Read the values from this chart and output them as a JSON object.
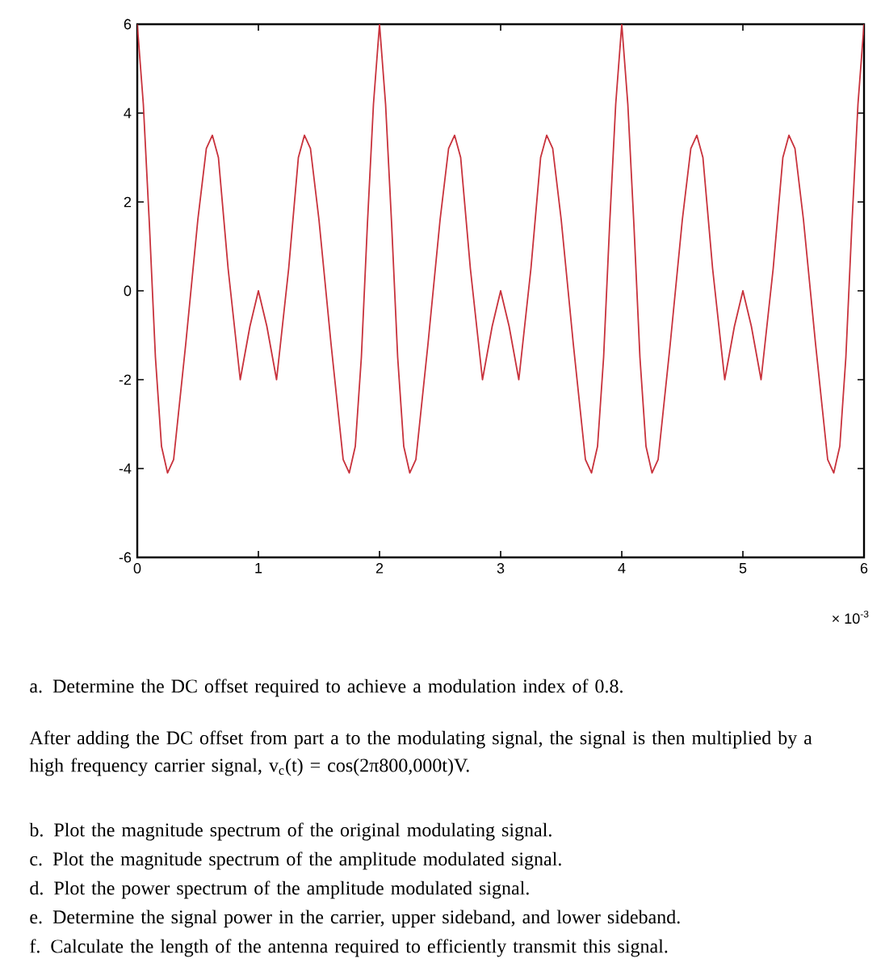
{
  "chart_data": {
    "type": "line",
    "xlabel": "× 10$^{-3}$",
    "x": [
      0,
      0.05,
      0.1,
      0.15,
      0.2,
      0.25,
      0.3,
      0.4,
      0.5,
      0.57,
      0.62,
      0.67,
      0.75,
      0.85,
      0.93,
      1.0,
      1.07,
      1.15,
      1.25,
      1.33,
      1.38,
      1.43,
      1.5,
      1.6,
      1.7,
      1.75,
      1.8,
      1.85,
      1.9,
      1.95,
      2.0,
      2.05,
      2.1,
      2.15,
      2.2,
      2.25,
      2.3,
      2.4,
      2.5,
      2.57,
      2.62,
      2.67,
      2.75,
      2.85,
      2.93,
      3.0,
      3.07,
      3.15,
      3.25,
      3.33,
      3.38,
      3.43,
      3.5,
      3.6,
      3.7,
      3.75,
      3.8,
      3.85,
      3.9,
      3.95,
      4.0,
      4.05,
      4.1,
      4.15,
      4.2,
      4.25,
      4.3,
      4.4,
      4.5,
      4.57,
      4.62,
      4.67,
      4.75,
      4.85,
      4.93,
      5.0,
      5.07,
      5.15,
      5.25,
      5.33,
      5.38,
      5.43,
      5.5,
      5.6,
      5.7,
      5.75,
      5.8,
      5.85,
      5.9,
      5.95,
      6.0
    ],
    "series": [
      {
        "color": "#c8323c",
        "values": [
          6,
          4.2,
          1.5,
          -1.5,
          -3.5,
          -4.1,
          -3.8,
          -1.2,
          1.6,
          3.2,
          3.5,
          3.0,
          0.5,
          -2,
          -0.8,
          0,
          -0.8,
          -2,
          0.5,
          3.0,
          3.5,
          3.2,
          1.6,
          -1.2,
          -3.8,
          -4.1,
          -3.5,
          -1.5,
          1.5,
          4.2,
          6,
          4.2,
          1.5,
          -1.5,
          -3.5,
          -4.1,
          -3.8,
          -1.2,
          1.6,
          3.2,
          3.5,
          3.0,
          0.5,
          -2,
          -0.8,
          0,
          -0.8,
          -2,
          0.5,
          3.0,
          3.5,
          3.2,
          1.6,
          -1.2,
          -3.8,
          -4.1,
          -3.5,
          -1.5,
          1.5,
          4.2,
          6,
          4.2,
          1.5,
          -1.5,
          -3.5,
          -4.1,
          -3.8,
          -1.2,
          1.6,
          3.2,
          3.5,
          3.0,
          0.5,
          -2,
          -0.8,
          0,
          -0.8,
          -2,
          0.5,
          3.0,
          3.5,
          3.2,
          1.6,
          -1.2,
          -3.8,
          -4.1,
          -3.5,
          -1.5,
          1.5,
          4.2,
          6
        ]
      }
    ],
    "xlim": [
      0,
      6
    ],
    "xticks": [
      0,
      1,
      2,
      3,
      4,
      5,
      6
    ],
    "ylim": [
      -6,
      6
    ],
    "yticks": [
      -6,
      -4,
      -2,
      0,
      2,
      4,
      6
    ],
    "annotations": [
      "a.  Determine the DC offset required to achieve a modulation index of 0.8.",
      "After adding the DC offset from part a to the modulating signal, the signal is then multiplied by a high frequency carrier signal,  v$_{c}$(t) = cos(2π800,000t)V.",
      "b.  Plot the magnitude spectrum of the original modulating signal.",
      "c.  Plot the magnitude spectrum of the amplitude modulated signal.",
      "d.  Plot the power spectrum of the amplitude modulated signal.",
      "e.  Determine the signal power in the carrier, upper sideband, and lower sideband.",
      "f.  Calculate the length of the antenna required to efficiently transmit this signal."
    ]
  }
}
